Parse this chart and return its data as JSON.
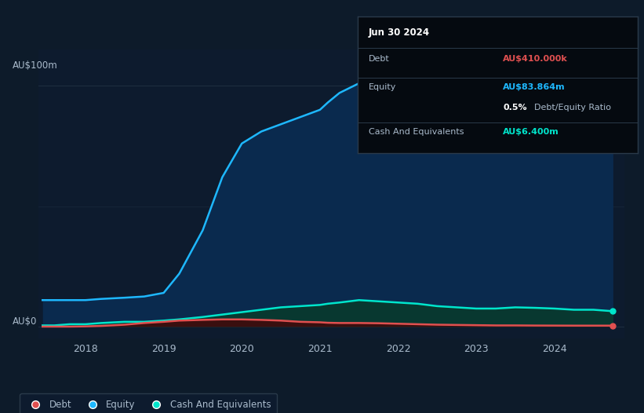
{
  "bg": "#0d1b2a",
  "plot_bg": "#0d1b2e",
  "equity_line": "#1eb8ff",
  "equity_fill": "#0a2a4e",
  "cash_line": "#00e5cc",
  "cash_fill": "#083830",
  "debt_line": "#e05050",
  "debt_fill": "#3a0f0f",
  "grid_color": "#1e2e40",
  "text_color": "#aabbcc",
  "white": "#ffffff",
  "tooltip_bg": "#050a10",
  "tooltip_border": "#2a3a4a",
  "x_ticks": [
    2018,
    2019,
    2020,
    2021,
    2022,
    2023,
    2024
  ],
  "ylim": [
    -5,
    115
  ],
  "xlim": [
    2017.4,
    2024.9
  ],
  "time": [
    2017.45,
    2017.6,
    2017.8,
    2018.0,
    2018.2,
    2018.5,
    2018.75,
    2019.0,
    2019.2,
    2019.5,
    2019.75,
    2020.0,
    2020.25,
    2020.5,
    2020.75,
    2021.0,
    2021.1,
    2021.25,
    2021.5,
    2021.75,
    2022.0,
    2022.25,
    2022.5,
    2022.75,
    2023.0,
    2023.25,
    2023.5,
    2023.75,
    2024.0,
    2024.25,
    2024.5,
    2024.75
  ],
  "equity": [
    11,
    11,
    11,
    11,
    11.5,
    12,
    12.5,
    14,
    22,
    40,
    62,
    76,
    81,
    84,
    87,
    90,
    93,
    97,
    101,
    103,
    98,
    88,
    82,
    79,
    77,
    77,
    79,
    81,
    82,
    82,
    83,
    83.864
  ],
  "cash": [
    0.5,
    0.5,
    1,
    1,
    1.5,
    2,
    2,
    2.5,
    3,
    4,
    5,
    6,
    7,
    8,
    8.5,
    9,
    9.5,
    10,
    11,
    10.5,
    10,
    9.5,
    8.5,
    8,
    7.5,
    7.5,
    8,
    7.8,
    7.5,
    7,
    7,
    6.4
  ],
  "debt": [
    0,
    0,
    0,
    0.1,
    0.3,
    0.8,
    1.5,
    2,
    2.5,
    2.8,
    3,
    3,
    2.8,
    2.5,
    2,
    1.8,
    1.6,
    1.5,
    1.5,
    1.4,
    1.2,
    1.0,
    0.8,
    0.7,
    0.6,
    0.5,
    0.5,
    0.45,
    0.43,
    0.41,
    0.41,
    0.41
  ],
  "tooltip_title": "Jun 30 2024",
  "tooltip_debt_label": "Debt",
  "tooltip_debt_value": "AU$410.000k",
  "tooltip_equity_label": "Equity",
  "tooltip_equity_value": "AU$83.864m",
  "tooltip_ratio_value": "0.5%",
  "tooltip_ratio_label": "Debt/Equity Ratio",
  "tooltip_cash_label": "Cash And Equivalents",
  "tooltip_cash_value": "AU$6.400m",
  "y_label_100m": "AU$100m",
  "y_label_0": "AU$0"
}
